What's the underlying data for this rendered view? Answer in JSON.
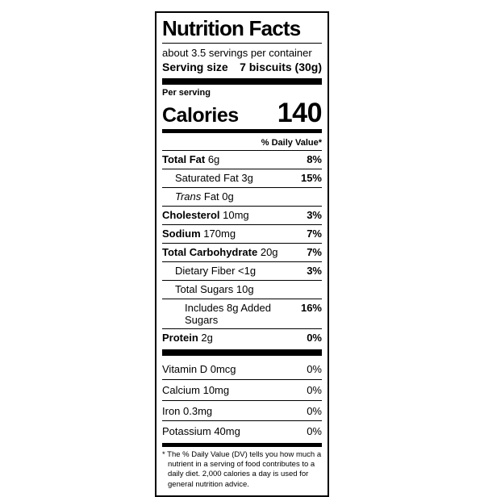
{
  "nutrition_label": {
    "title": "Nutrition Facts",
    "servings_per_container": "about 3.5 servings per container",
    "serving_size": {
      "label": "Serving size",
      "value": "7 biscuits (30g)"
    },
    "calories": {
      "context": "Per serving",
      "label": "Calories",
      "value": "140"
    },
    "daily_value_header": "% Daily Value*",
    "rows": [
      {
        "name": "Total Fat",
        "amount": "6g",
        "dv": "8%"
      },
      {
        "name": "Saturated Fat",
        "amount": "3g",
        "dv": "15%"
      },
      {
        "name": "Trans",
        "amount": "Fat 0g",
        "dv": ""
      },
      {
        "name": "Cholesterol",
        "amount": "10mg",
        "dv": "3%"
      },
      {
        "name": "Sodium",
        "amount": "170mg",
        "dv": "7%"
      },
      {
        "name": "Total Carbohydrate",
        "amount": "20g",
        "dv": "7%"
      },
      {
        "name": "Dietary Fiber",
        "amount": "<1g",
        "dv": "3%"
      },
      {
        "name": "Total Sugars",
        "amount": "10g",
        "dv": ""
      },
      {
        "name": "Includes 8g Added Sugars",
        "amount": "",
        "dv": "16%"
      },
      {
        "name": "Protein",
        "amount": "2g",
        "dv": "0%"
      }
    ],
    "micronutrients": [
      {
        "name": "Vitamin D",
        "amount": "0mcg",
        "dv": "0%"
      },
      {
        "name": "Calcium",
        "amount": "10mg",
        "dv": "0%"
      },
      {
        "name": "Iron",
        "amount": "0.3mg",
        "dv": "0%"
      },
      {
        "name": "Potassium",
        "amount": "40mg",
        "dv": "0%"
      }
    ],
    "footnote": "* The % Daily Value (DV) tells you how much a nutrient in a serving of food contributes to a daily diet. 2,000 calories a day is used for general nutrition advice.",
    "colors": {
      "ink": "#000000",
      "background": "#ffffff"
    }
  }
}
